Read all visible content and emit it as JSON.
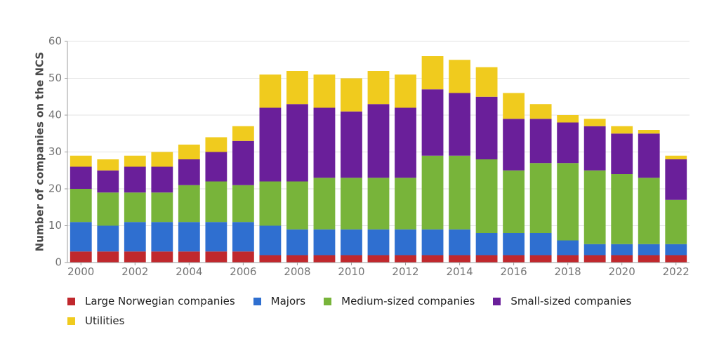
{
  "chart_data": {
    "type": "bar",
    "stacked": true,
    "ylabel": "Number of companies on the NCS",
    "xlabel": "",
    "ylim": [
      0,
      60
    ],
    "yticks": [
      0,
      10,
      20,
      30,
      40,
      50,
      60
    ],
    "grid": true,
    "legend_position": "bottom",
    "categories": [
      "2000",
      "2001",
      "2002",
      "2003",
      "2004",
      "2005",
      "2006",
      "2007",
      "2008",
      "2009",
      "2010",
      "2011",
      "2012",
      "2013",
      "2014",
      "2015",
      "2016",
      "2017",
      "2018",
      "2019",
      "2020",
      "2021",
      "2022"
    ],
    "x_tick_labels": [
      "2000",
      "2002",
      "2004",
      "2006",
      "2008",
      "2010",
      "2012",
      "2014",
      "2016",
      "2018",
      "2020",
      "2022"
    ],
    "series": [
      {
        "name": "Large Norwegian companies",
        "color": "#c0282d",
        "values": [
          3,
          3,
          3,
          3,
          3,
          3,
          3,
          2,
          2,
          2,
          2,
          2,
          2,
          2,
          2,
          2,
          2,
          2,
          2,
          2,
          2,
          2,
          2
        ]
      },
      {
        "name": "Majors",
        "color": "#2f6fd0",
        "values": [
          8,
          7,
          8,
          8,
          8,
          8,
          8,
          8,
          7,
          7,
          7,
          7,
          7,
          7,
          7,
          6,
          6,
          6,
          4,
          3,
          3,
          3,
          3
        ]
      },
      {
        "name": "Medium-sized companies",
        "color": "#78b43a",
        "values": [
          9,
          9,
          8,
          8,
          10,
          11,
          10,
          12,
          13,
          14,
          14,
          14,
          14,
          20,
          20,
          20,
          17,
          19,
          21,
          20,
          19,
          18,
          12
        ]
      },
      {
        "name": "Small-sized companies",
        "color": "#6a1f9a",
        "values": [
          6,
          6,
          7,
          7,
          7,
          8,
          12,
          20,
          21,
          19,
          18,
          20,
          19,
          18,
          17,
          17,
          14,
          12,
          11,
          12,
          11,
          12,
          11
        ]
      },
      {
        "name": "Utilities",
        "color": "#f0cb1e",
        "values": [
          3,
          3,
          3,
          4,
          4,
          4,
          4,
          9,
          9,
          9,
          9,
          9,
          9,
          9,
          9,
          8,
          7,
          4,
          2,
          2,
          2,
          1,
          1
        ]
      }
    ]
  }
}
